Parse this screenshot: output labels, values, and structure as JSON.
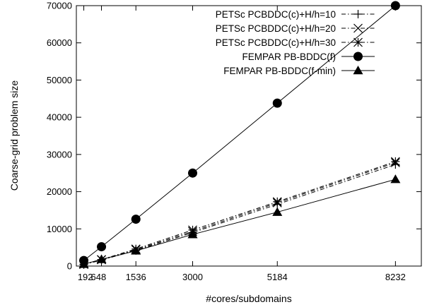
{
  "chart_data": {
    "type": "line",
    "xlabel": "#cores/subdomains",
    "ylabel": "Coarse-grid problem size",
    "xlim": [
      0,
      8900
    ],
    "ylim": [
      0,
      70000
    ],
    "x_ticks": [
      192,
      648,
      1536,
      3000,
      5184,
      8232
    ],
    "y_ticks": [
      0,
      10000,
      20000,
      30000,
      40000,
      50000,
      60000,
      70000
    ],
    "grid": false,
    "legend_position": "top-left",
    "series": [
      {
        "name": "PETSc PCBDDC(c)+H/h=10",
        "marker": "plus",
        "line": "dash-dot",
        "x": [
          192,
          648,
          1536,
          3000,
          5184,
          8232
        ],
        "y": [
          400,
          1600,
          4200,
          9000,
          16600,
          27300
        ]
      },
      {
        "name": "PETSc PCBDDC(c)+H/h=20",
        "marker": "cross",
        "line": "dash-dot",
        "x": [
          192,
          648,
          1536,
          3000,
          5184,
          8232
        ],
        "y": [
          450,
          1700,
          4400,
          9300,
          17000,
          27800
        ]
      },
      {
        "name": "PETSc PCBDDC(c)+H/h=30",
        "marker": "asterisk",
        "line": "dash-dot",
        "x": [
          192,
          648,
          1536,
          3000,
          5184,
          8232
        ],
        "y": [
          500,
          1750,
          4600,
          9700,
          17300,
          28100
        ]
      },
      {
        "name": "FEMPAR PB-BDDC(f)",
        "marker": "circle",
        "line": "solid",
        "x": [
          192,
          648,
          1536,
          3000,
          5184,
          8232
        ],
        "y": [
          1500,
          5200,
          12600,
          25000,
          43800,
          70000
        ]
      },
      {
        "name": "FEMPAR PB-BDDC(f-min)",
        "marker": "triangle",
        "line": "solid",
        "x": [
          192,
          648,
          1536,
          3000,
          5184,
          8232
        ],
        "y": [
          500,
          1800,
          4100,
          8500,
          14500,
          23300
        ]
      }
    ]
  }
}
